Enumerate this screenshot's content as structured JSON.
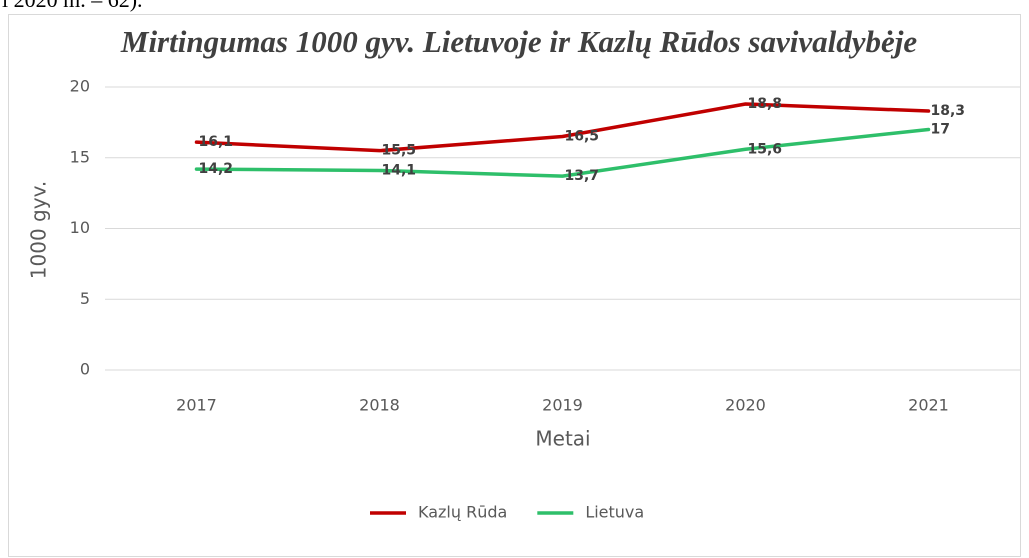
{
  "page_text": "i 2020 m. – 62).",
  "chart_data": {
    "type": "line",
    "title": "Mirtingumas 1000 gyv. Lietuvoje ir Kazlų Rūdos savivaldybėje",
    "x_label": "Metai",
    "y_label": "1000 gyv.",
    "categories": [
      "2017",
      "2018",
      "2019",
      "2020",
      "2021"
    ],
    "series": [
      {
        "name": "Kazlų Rūda",
        "color": "#c00000",
        "values": [
          16.1,
          15.5,
          16.5,
          18.8,
          18.3
        ],
        "value_labels": [
          "16,1",
          "15,5",
          "16,5",
          "18,8",
          "18,3"
        ]
      },
      {
        "name": "Lietuva",
        "color": "#2ebf6a",
        "values": [
          14.2,
          14.1,
          13.7,
          15.6,
          17
        ],
        "value_labels": [
          "14,2",
          "14,1",
          "13,7",
          "15,6",
          "17"
        ]
      }
    ],
    "ylim": [
      0,
      20
    ],
    "yticks": [
      0,
      5,
      10,
      15,
      20
    ],
    "grid": true,
    "legend": "bottom"
  }
}
